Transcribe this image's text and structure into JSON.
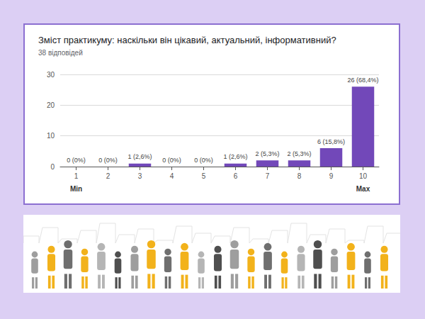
{
  "chart_data": {
    "type": "bar",
    "title": "Зміст практикуму: наскільки він цікавий, актуальний, інформативний?",
    "subtitle": "38 відповідей",
    "categories": [
      "1",
      "2",
      "3",
      "4",
      "5",
      "6",
      "7",
      "8",
      "9",
      "10"
    ],
    "values": [
      0,
      0,
      1,
      0,
      0,
      1,
      2,
      2,
      6,
      26
    ],
    "value_labels": [
      "0 (0%)",
      "0 (0%)",
      "1 (2,6%)",
      "0 (0%)",
      "0 (0%)",
      "1 (2,6%)",
      "2 (5,3%)",
      "2 (5,3%)",
      "6 (15,8%)",
      "26 (68,4%)"
    ],
    "annotations": [
      {
        "text": "Min",
        "category": "1"
      },
      {
        "text": "Max",
        "category": "10"
      }
    ],
    "color": "#7248b9",
    "ylim": [
      0,
      30
    ],
    "yticks": [
      0,
      10,
      20,
      30
    ],
    "grid": true,
    "data_labels": true
  }
}
